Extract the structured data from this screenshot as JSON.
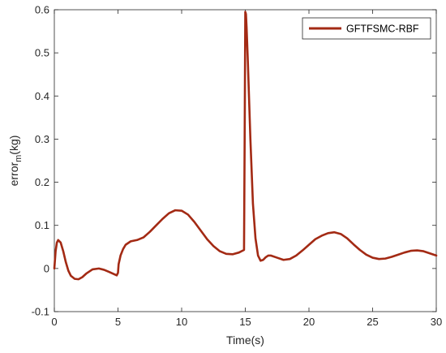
{
  "chart_data": {
    "type": "line",
    "xlabel": "Time(s)",
    "ylabel_main": "error",
    "ylabel_sub": "m",
    "ylabel_unit": "(kg)",
    "xlim": [
      0,
      30
    ],
    "ylim": [
      -0.1,
      0.6
    ],
    "x_ticks": [
      "0",
      "5",
      "10",
      "15",
      "20",
      "25",
      "30"
    ],
    "y_ticks": [
      "-0.1",
      "0",
      "0.1",
      "0.2",
      "0.3",
      "0.4",
      "0.5",
      "0.6"
    ],
    "grid": false,
    "legend_position": "top-right",
    "series": [
      {
        "name": "GFTFSMC-RBF",
        "color": "#a32a14",
        "x": [
          0,
          0.1,
          0.2,
          0.3,
          0.5,
          0.7,
          0.9,
          1.1,
          1.3,
          1.6,
          1.9,
          2.2,
          2.5,
          3.0,
          3.5,
          3.9,
          4.3,
          4.6,
          4.9,
          5.0,
          5.05,
          5.2,
          5.4,
          5.6,
          6.0,
          6.5,
          7.0,
          7.5,
          8.0,
          8.5,
          9.0,
          9.5,
          10.0,
          10.5,
          11.0,
          11.5,
          12.0,
          12.5,
          13.0,
          13.5,
          14.0,
          14.5,
          14.9,
          14.95,
          15.0,
          15.05,
          15.1,
          15.2,
          15.4,
          15.6,
          15.8,
          16.0,
          16.2,
          16.4,
          16.6,
          16.8,
          17.0,
          17.5,
          18.0,
          18.5,
          19.0,
          19.5,
          20.0,
          20.5,
          21.0,
          21.5,
          22.0,
          22.5,
          23.0,
          23.5,
          24.0,
          24.5,
          25.0,
          25.5,
          26.0,
          26.5,
          27.0,
          27.5,
          28.0,
          28.5,
          29.0,
          29.5,
          30.0
        ],
        "y": [
          0.0,
          0.04,
          0.06,
          0.066,
          0.06,
          0.04,
          0.015,
          -0.005,
          -0.017,
          -0.024,
          -0.025,
          -0.02,
          -0.012,
          -0.002,
          0.0,
          -0.003,
          -0.008,
          -0.012,
          -0.016,
          -0.01,
          0.01,
          0.03,
          0.045,
          0.055,
          0.063,
          0.066,
          0.072,
          0.085,
          0.1,
          0.115,
          0.128,
          0.135,
          0.134,
          0.125,
          0.108,
          0.088,
          0.068,
          0.052,
          0.04,
          0.034,
          0.033,
          0.037,
          0.043,
          0.3,
          0.595,
          0.59,
          0.56,
          0.48,
          0.3,
          0.15,
          0.07,
          0.03,
          0.018,
          0.02,
          0.026,
          0.03,
          0.03,
          0.025,
          0.02,
          0.022,
          0.03,
          0.042,
          0.055,
          0.068,
          0.076,
          0.082,
          0.084,
          0.08,
          0.07,
          0.056,
          0.043,
          0.032,
          0.025,
          0.022,
          0.023,
          0.027,
          0.032,
          0.037,
          0.041,
          0.042,
          0.04,
          0.035,
          0.03
        ]
      }
    ]
  }
}
